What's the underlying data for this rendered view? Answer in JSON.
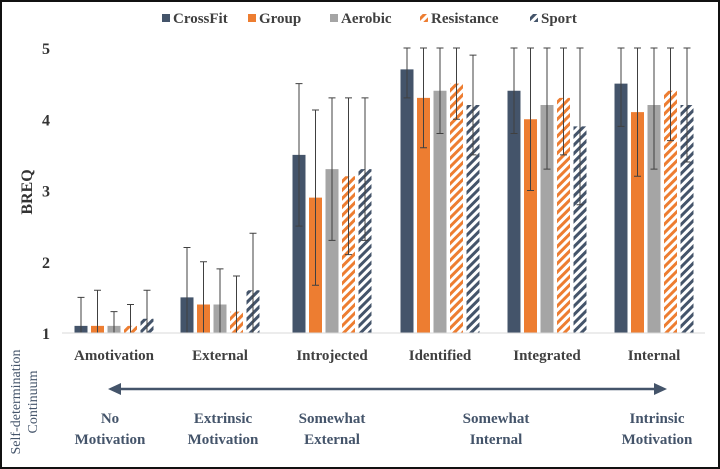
{
  "chart_data": {
    "type": "bar",
    "ylabel": "BREQ",
    "ylim": [
      1,
      5
    ],
    "yticks": [
      1,
      2,
      3,
      4,
      5
    ],
    "grid": false,
    "legend_position": "top",
    "categories": [
      "Amotivation",
      "External",
      "Introjected",
      "Identified",
      "Integrated",
      "Internal"
    ],
    "series": [
      {
        "name": "CrossFit",
        "color": "#44546a",
        "pattern": "solid",
        "values": [
          1.1,
          1.5,
          3.5,
          4.7,
          4.4,
          4.5
        ],
        "error": [
          0.4,
          0.7,
          1.0,
          0.4,
          0.6,
          0.6
        ]
      },
      {
        "name": "Group",
        "color": "#ed7d31",
        "pattern": "solid",
        "values": [
          1.1,
          1.4,
          2.9,
          4.3,
          4.0,
          4.1
        ],
        "error": [
          0.5,
          0.6,
          1.23,
          0.7,
          1.0,
          0.9
        ]
      },
      {
        "name": "Aerobic",
        "color": "#a5a5a5",
        "pattern": "solid",
        "values": [
          1.1,
          1.4,
          3.3,
          4.4,
          4.2,
          4.2
        ],
        "error": [
          0.2,
          0.5,
          1.0,
          0.6,
          0.9,
          0.9
        ]
      },
      {
        "name": "Resistance",
        "color": "#ed7d31",
        "pattern": "diagonal-stripes",
        "values": [
          1.1,
          1.3,
          3.2,
          4.5,
          4.3,
          4.4
        ],
        "error": [
          0.3,
          0.5,
          1.1,
          0.5,
          0.8,
          0.7
        ]
      },
      {
        "name": "Sport",
        "color": "#44546a",
        "pattern": "diagonal-stripes",
        "values": [
          1.2,
          1.6,
          3.3,
          4.2,
          3.9,
          4.2
        ],
        "error": [
          0.4,
          0.8,
          1.0,
          0.7,
          1.1,
          0.8
        ]
      }
    ],
    "annotations": {
      "continuum_label": "Self-determination Continuum",
      "continuum_arrow": "bidirectional",
      "continuum_stages": [
        {
          "line1": "No",
          "line2": "Motivation"
        },
        {
          "line1": "Extrinsic",
          "line2": "Motivation"
        },
        {
          "line1": "Somewhat",
          "line2": "External"
        },
        {
          "line1": "Somewhat",
          "line2": "Internal"
        },
        {
          "line1": "Intrinsic",
          "line2": "Motivation"
        }
      ]
    }
  }
}
